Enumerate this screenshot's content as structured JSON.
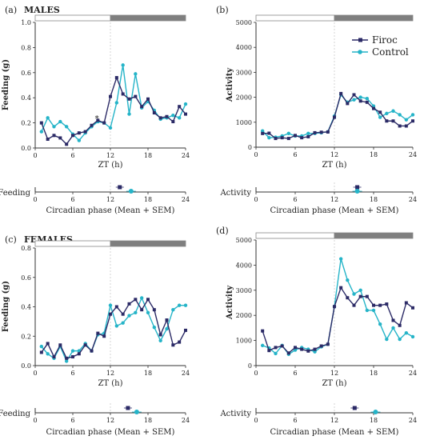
{
  "colors": {
    "firoc": "#2b2a66",
    "control": "#25b4c8",
    "light_bar": "#ffffff",
    "dark_bar": "#7f7f7f"
  },
  "chart_data": [
    {
      "id": "a",
      "type": "line",
      "panel_label": "(a)",
      "title": "MALES",
      "xlabel": "ZT (h)",
      "ylabel": "Feeding (g)",
      "xlim": [
        0,
        24
      ],
      "ylim": [
        0,
        1.0
      ],
      "xticks": [
        0,
        6,
        12,
        18,
        24
      ],
      "yticks": [
        0,
        0.2,
        0.4,
        0.6,
        0.8,
        1.0
      ],
      "ytick_labels": [
        "0.0",
        "0.2",
        "0.4",
        "0.6",
        "0.8",
        "1.0"
      ],
      "annotation": "*",
      "x": [
        1,
        2,
        3,
        4,
        5,
        6,
        7,
        8,
        9,
        10,
        11,
        12,
        13,
        14,
        15,
        16,
        17,
        18,
        19,
        20,
        21,
        22,
        23,
        24
      ],
      "series": [
        {
          "key": "firoc",
          "values": [
            0.2,
            0.07,
            0.1,
            0.08,
            0.03,
            0.1,
            0.12,
            0.13,
            0.18,
            0.22,
            0.2,
            0.41,
            0.56,
            0.43,
            0.39,
            0.41,
            0.33,
            0.39,
            0.28,
            0.24,
            0.25,
            0.21,
            0.33,
            0.27
          ]
        },
        {
          "key": "control",
          "values": [
            0.13,
            0.24,
            0.17,
            0.21,
            0.17,
            0.11,
            0.06,
            0.12,
            0.17,
            0.21,
            0.2,
            0.16,
            0.36,
            0.66,
            0.27,
            0.59,
            0.32,
            0.37,
            0.3,
            0.23,
            0.24,
            0.26,
            0.24,
            0.35
          ]
        }
      ],
      "phase": {
        "xlabel": "Circadian phase (Mean + SEM)",
        "label": "Feeding",
        "xticks": [
          0,
          6,
          12,
          18,
          24
        ],
        "firoc": 13.5,
        "control": 15.3
      }
    },
    {
      "id": "b",
      "type": "line",
      "panel_label": "(b)",
      "xlabel": "ZT (h)",
      "ylabel": "Activity",
      "xlim": [
        0,
        24
      ],
      "ylim": [
        0,
        5000
      ],
      "xticks": [
        0,
        6,
        12,
        18,
        24
      ],
      "yticks": [
        0,
        1000,
        2000,
        3000,
        4000,
        5000
      ],
      "ytick_labels": [
        "0",
        "1000",
        "2000",
        "3000",
        "4000",
        "5000"
      ],
      "legend": {
        "position": "top-right",
        "firoc": "Firoc",
        "control": "Control"
      },
      "x": [
        1,
        2,
        3,
        4,
        5,
        6,
        7,
        8,
        9,
        10,
        11,
        12,
        13,
        14,
        15,
        16,
        17,
        18,
        19,
        20,
        21,
        22,
        23,
        24
      ],
      "series": [
        {
          "key": "firoc",
          "values": [
            550,
            560,
            350,
            380,
            350,
            470,
            380,
            420,
            580,
            600,
            610,
            1200,
            2150,
            1750,
            2100,
            1850,
            1800,
            1550,
            1400,
            1050,
            1050,
            850,
            850,
            1050
          ]
        },
        {
          "key": "control",
          "values": [
            650,
            380,
            400,
            450,
            550,
            450,
            450,
            550,
            550,
            580,
            620,
            1250,
            2100,
            1800,
            1900,
            2000,
            1950,
            1650,
            1200,
            1350,
            1450,
            1300,
            1100,
            1300
          ]
        }
      ],
      "phase": {
        "xlabel": "Circadian phase (Mean + SEM)",
        "label": "Activity",
        "xticks": [
          0,
          6,
          12,
          18,
          24
        ],
        "firoc": 15.5,
        "control": 15.5
      }
    },
    {
      "id": "c",
      "type": "line",
      "panel_label": "(c)",
      "title": "FEMALES",
      "xlabel": "ZT (h)",
      "ylabel": "Feeding (g)",
      "xlim": [
        0,
        24
      ],
      "ylim": [
        0,
        0.8
      ],
      "xticks": [
        0,
        6,
        12,
        18,
        24
      ],
      "yticks": [
        0,
        0.2,
        0.4,
        0.6,
        0.8
      ],
      "ytick_labels": [
        "0.0",
        "0.2",
        "0.4",
        "0.6",
        "0.8"
      ],
      "x": [
        1,
        2,
        3,
        4,
        5,
        6,
        7,
        8,
        9,
        10,
        11,
        12,
        13,
        14,
        15,
        16,
        17,
        18,
        19,
        20,
        21,
        22,
        23,
        24
      ],
      "series": [
        {
          "key": "firoc",
          "values": [
            0.09,
            0.15,
            0.06,
            0.14,
            0.05,
            0.06,
            0.08,
            0.14,
            0.1,
            0.22,
            0.2,
            0.35,
            0.4,
            0.35,
            0.42,
            0.45,
            0.38,
            0.45,
            0.38,
            0.21,
            0.31,
            0.14,
            0.16,
            0.24
          ]
        },
        {
          "key": "control",
          "values": [
            0.13,
            0.08,
            0.05,
            0.13,
            0.03,
            0.1,
            0.1,
            0.15,
            0.1,
            0.21,
            0.22,
            0.41,
            0.27,
            0.29,
            0.34,
            0.36,
            0.46,
            0.36,
            0.26,
            0.17,
            0.25,
            0.38,
            0.41,
            0.41
          ]
        }
      ],
      "phase": {
        "xlabel": "Circadian phase (Mean + SEM)",
        "label": "Feeding",
        "xticks": [
          0,
          6,
          12,
          18,
          24
        ],
        "firoc": 14.8,
        "control": 16.2
      }
    },
    {
      "id": "d",
      "type": "line",
      "panel_label": "(d)",
      "xlabel": "ZT (h)",
      "ylabel": "Activity",
      "xlim": [
        0,
        24
      ],
      "ylim": [
        0,
        5000
      ],
      "xticks": [
        0,
        6,
        12,
        18,
        24
      ],
      "yticks": [
        0,
        1000,
        2000,
        3000,
        4000,
        5000
      ],
      "ytick_labels": [
        "0",
        "1000",
        "2000",
        "3000",
        "4000",
        "5000"
      ],
      "x": [
        1,
        2,
        3,
        4,
        5,
        6,
        7,
        8,
        9,
        10,
        11,
        12,
        13,
        14,
        15,
        16,
        17,
        18,
        19,
        20,
        21,
        22,
        23,
        24
      ],
      "series": [
        {
          "key": "firoc",
          "values": [
            1380,
            600,
            720,
            780,
            500,
            720,
            650,
            580,
            650,
            780,
            850,
            2350,
            3100,
            2700,
            2400,
            2750,
            2750,
            2400,
            2400,
            2450,
            1800,
            1600,
            2500,
            2300
          ]
        },
        {
          "key": "control",
          "values": [
            800,
            700,
            480,
            800,
            450,
            620,
            720,
            650,
            550,
            750,
            850,
            2350,
            4250,
            3400,
            2850,
            3000,
            2200,
            2200,
            1650,
            1050,
            1500,
            1050,
            1300,
            1150
          ]
        }
      ],
      "phase": {
        "xlabel": "Circadian phase (Mean + SEM)",
        "label": "Activity",
        "xticks": [
          0,
          6,
          12,
          18,
          24
        ],
        "firoc": 15.1,
        "control": 18.3
      }
    }
  ]
}
